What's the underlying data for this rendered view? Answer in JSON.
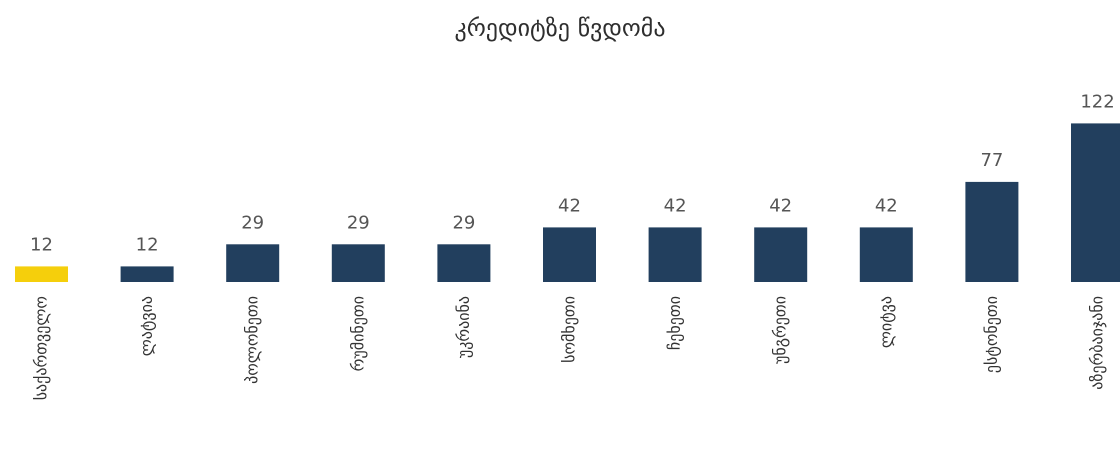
{
  "chart_data": {
    "type": "bar",
    "title": "კრედიტზე წვდომა",
    "categories": [
      "საქართველო",
      "ლატვია",
      "პოლონეთი",
      "რუმინეთი",
      "უკრაინა",
      "სომხეთი",
      "ჩეხეთი",
      "უნგრეთი",
      "ლიტვა",
      "ესტონეთი",
      "აზერბაიჯანი"
    ],
    "values": [
      12,
      12,
      29,
      29,
      29,
      42,
      42,
      42,
      42,
      77,
      122
    ],
    "highlight_index": 0,
    "colors": {
      "bar": "#223f5e",
      "highlight": "#f5cf0c"
    },
    "xlabel": "",
    "ylabel": "",
    "legend": "none",
    "grid": false
  }
}
